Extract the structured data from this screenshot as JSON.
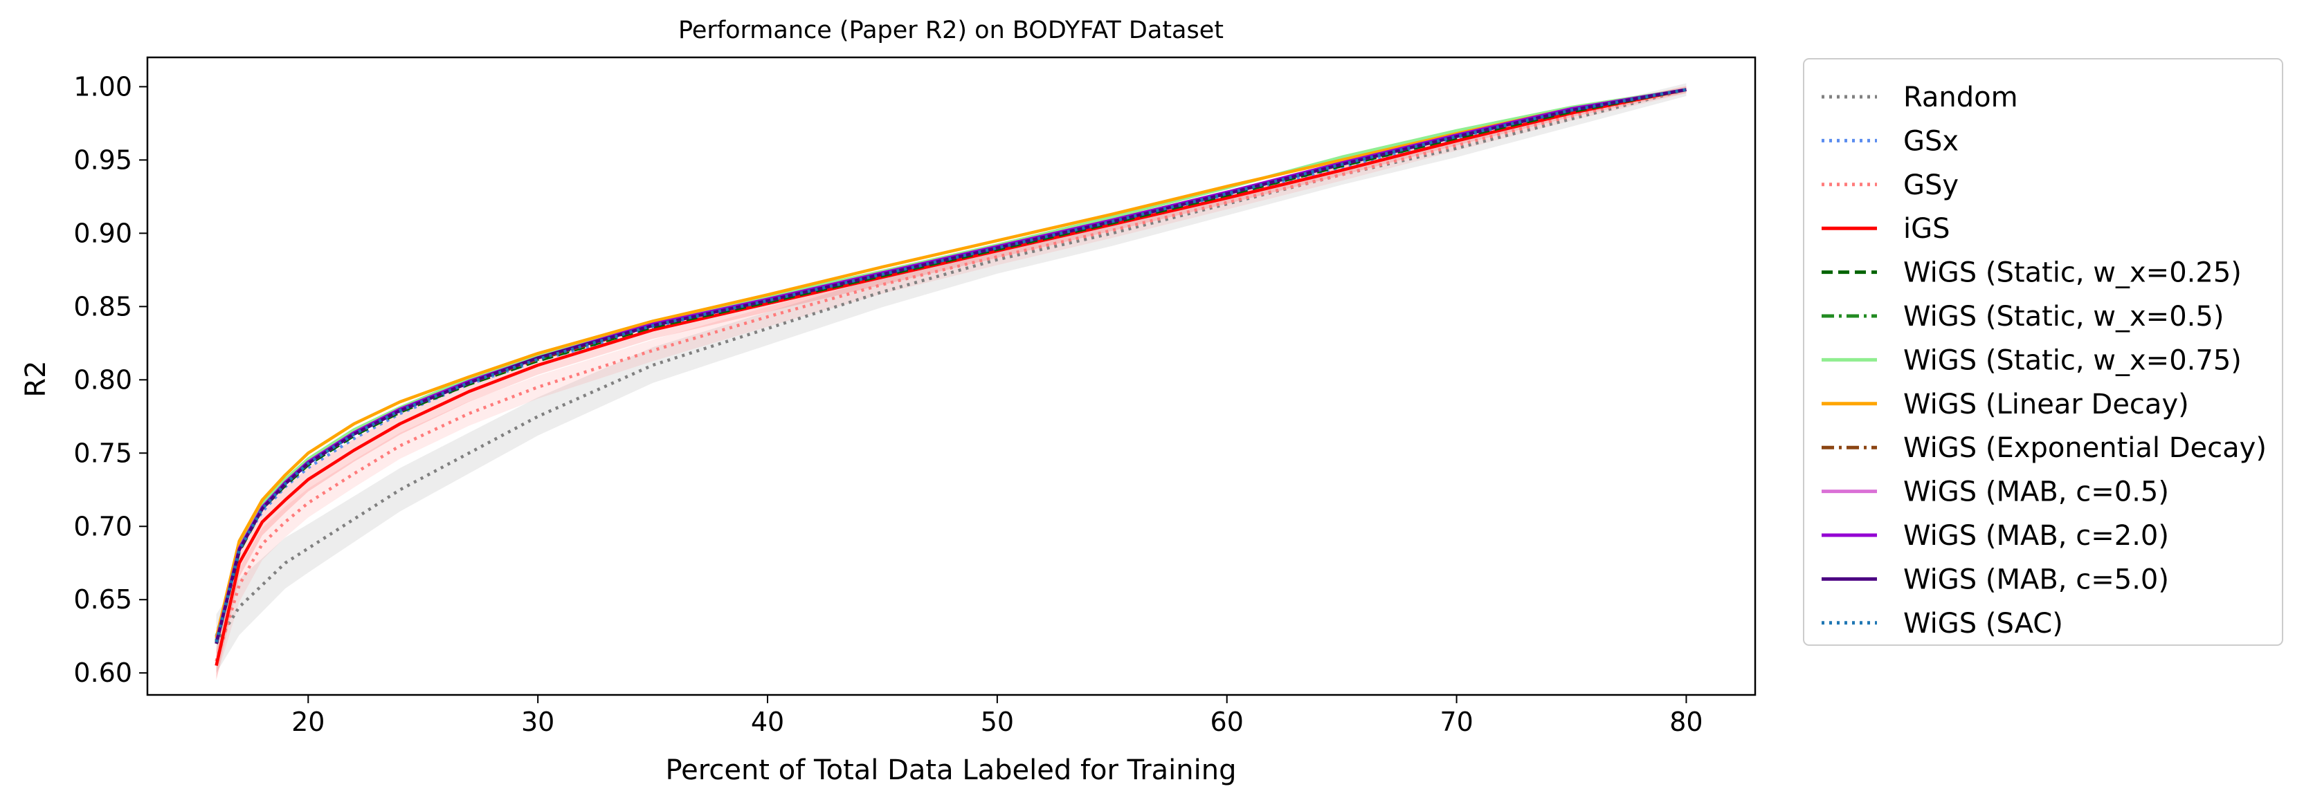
{
  "chart_data": {
    "type": "line",
    "title": "Performance (Paper R2) on BODYFAT Dataset",
    "xlabel": "Percent of Total Data Labeled for Training",
    "ylabel": "R2",
    "xlim": [
      13,
      83
    ],
    "ylim": [
      0.585,
      1.02
    ],
    "xticks": [
      {
        "value": 20,
        "label": "20"
      },
      {
        "value": 30,
        "label": "30"
      },
      {
        "value": 40,
        "label": "40"
      },
      {
        "value": 50,
        "label": "50"
      },
      {
        "value": 60,
        "label": "60"
      },
      {
        "value": 70,
        "label": "70"
      },
      {
        "value": 80,
        "label": "80"
      }
    ],
    "yticks": [
      {
        "value": 0.6,
        "label": "0.60"
      },
      {
        "value": 0.65,
        "label": "0.65"
      },
      {
        "value": 0.7,
        "label": "0.70"
      },
      {
        "value": 0.75,
        "label": "0.75"
      },
      {
        "value": 0.8,
        "label": "0.80"
      },
      {
        "value": 0.85,
        "label": "0.85"
      },
      {
        "value": 0.9,
        "label": "0.90"
      },
      {
        "value": 0.95,
        "label": "0.95"
      },
      {
        "value": 1.0,
        "label": "1.00"
      }
    ],
    "grid": false,
    "legend_position": "outside-right",
    "x": [
      16,
      17,
      18,
      19,
      20,
      22,
      24,
      27,
      30,
      35,
      40,
      45,
      50,
      55,
      60,
      65,
      70,
      75,
      80
    ],
    "series": [
      {
        "name": "Random",
        "color": "#808080",
        "style": "dotted",
        "band": 0.02,
        "values": [
          0.62,
          0.645,
          0.66,
          0.675,
          0.685,
          0.705,
          0.725,
          0.75,
          0.775,
          0.81,
          0.835,
          0.86,
          0.882,
          0.9,
          0.92,
          0.94,
          0.958,
          0.978,
          0.998
        ]
      },
      {
        "name": "GSx",
        "color": "#5b8def",
        "style": "dotted",
        "band": 0,
        "values": [
          0.625,
          0.685,
          0.71,
          0.727,
          0.74,
          0.76,
          0.777,
          0.797,
          0.813,
          0.835,
          0.853,
          0.87,
          0.888,
          0.906,
          0.925,
          0.945,
          0.965,
          0.983,
          0.998
        ]
      },
      {
        "name": "GSy",
        "color": "#ff7b7b",
        "style": "dotted",
        "band": 0.012,
        "values": [
          0.608,
          0.66,
          0.688,
          0.703,
          0.716,
          0.736,
          0.755,
          0.777,
          0.795,
          0.82,
          0.843,
          0.865,
          0.884,
          0.902,
          0.921,
          0.94,
          0.96,
          0.98,
          0.998
        ]
      },
      {
        "name": "iGS",
        "color": "#ff0000",
        "style": "solid",
        "band": 0.01,
        "values": [
          0.605,
          0.675,
          0.703,
          0.718,
          0.732,
          0.752,
          0.77,
          0.792,
          0.81,
          0.834,
          0.852,
          0.87,
          0.888,
          0.906,
          0.924,
          0.943,
          0.963,
          0.982,
          0.998
        ]
      },
      {
        "name": "WiGS (Static, w_x=0.25)",
        "color": "#006400",
        "style": "dashed",
        "band": 0,
        "values": [
          0.62,
          0.683,
          0.712,
          0.728,
          0.742,
          0.762,
          0.778,
          0.797,
          0.813,
          0.836,
          0.853,
          0.871,
          0.889,
          0.907,
          0.926,
          0.946,
          0.965,
          0.983,
          0.998
        ]
      },
      {
        "name": "WiGS (Static, w_x=0.5)",
        "color": "#228b22",
        "style": "dashdot",
        "band": 0,
        "values": [
          0.622,
          0.686,
          0.714,
          0.73,
          0.744,
          0.764,
          0.779,
          0.798,
          0.814,
          0.837,
          0.854,
          0.872,
          0.89,
          0.908,
          0.927,
          0.947,
          0.966,
          0.984,
          0.998
        ]
      },
      {
        "name": "WiGS (Static, w_x=0.75)",
        "color": "#90ee90",
        "style": "solid",
        "band": 0,
        "values": [
          0.623,
          0.688,
          0.716,
          0.732,
          0.746,
          0.766,
          0.781,
          0.801,
          0.817,
          0.84,
          0.857,
          0.874,
          0.892,
          0.911,
          0.931,
          0.952,
          0.97,
          0.986,
          0.998
        ]
      },
      {
        "name": "WiGS (Linear Decay)",
        "color": "#ffa500",
        "style": "solid",
        "band": 0,
        "values": [
          0.624,
          0.69,
          0.718,
          0.735,
          0.75,
          0.77,
          0.785,
          0.802,
          0.818,
          0.84,
          0.858,
          0.877,
          0.895,
          0.913,
          0.932,
          0.95,
          0.968,
          0.985,
          0.998
        ]
      },
      {
        "name": "WiGS (Exponential Decay)",
        "color": "#8b4513",
        "style": "dashdot",
        "band": 0,
        "values": [
          0.62,
          0.684,
          0.712,
          0.729,
          0.743,
          0.763,
          0.779,
          0.798,
          0.814,
          0.837,
          0.854,
          0.872,
          0.89,
          0.908,
          0.927,
          0.947,
          0.966,
          0.984,
          0.998
        ]
      },
      {
        "name": "WiGS (MAB, c=0.5)",
        "color": "#da70d6",
        "style": "solid",
        "band": 0,
        "values": [
          0.621,
          0.685,
          0.713,
          0.729,
          0.743,
          0.763,
          0.779,
          0.798,
          0.815,
          0.838,
          0.855,
          0.873,
          0.891,
          0.909,
          0.928,
          0.948,
          0.967,
          0.985,
          0.998
        ]
      },
      {
        "name": "WiGS (MAB, c=2.0)",
        "color": "#9400d3",
        "style": "solid",
        "band": 0,
        "values": [
          0.621,
          0.685,
          0.713,
          0.73,
          0.744,
          0.764,
          0.78,
          0.799,
          0.815,
          0.838,
          0.855,
          0.873,
          0.891,
          0.909,
          0.928,
          0.948,
          0.967,
          0.985,
          0.998
        ]
      },
      {
        "name": "WiGS (MAB, c=5.0)",
        "color": "#4b0082",
        "style": "solid",
        "band": 0,
        "values": [
          0.62,
          0.684,
          0.712,
          0.729,
          0.743,
          0.763,
          0.779,
          0.798,
          0.815,
          0.837,
          0.854,
          0.872,
          0.89,
          0.908,
          0.927,
          0.947,
          0.966,
          0.984,
          0.998
        ]
      },
      {
        "name": "WiGS (SAC)",
        "color": "#1f77b4",
        "style": "dotted",
        "band": 0,
        "values": [
          0.621,
          0.684,
          0.712,
          0.729,
          0.743,
          0.763,
          0.779,
          0.798,
          0.814,
          0.837,
          0.854,
          0.872,
          0.89,
          0.908,
          0.927,
          0.947,
          0.966,
          0.984,
          0.998
        ]
      }
    ]
  }
}
